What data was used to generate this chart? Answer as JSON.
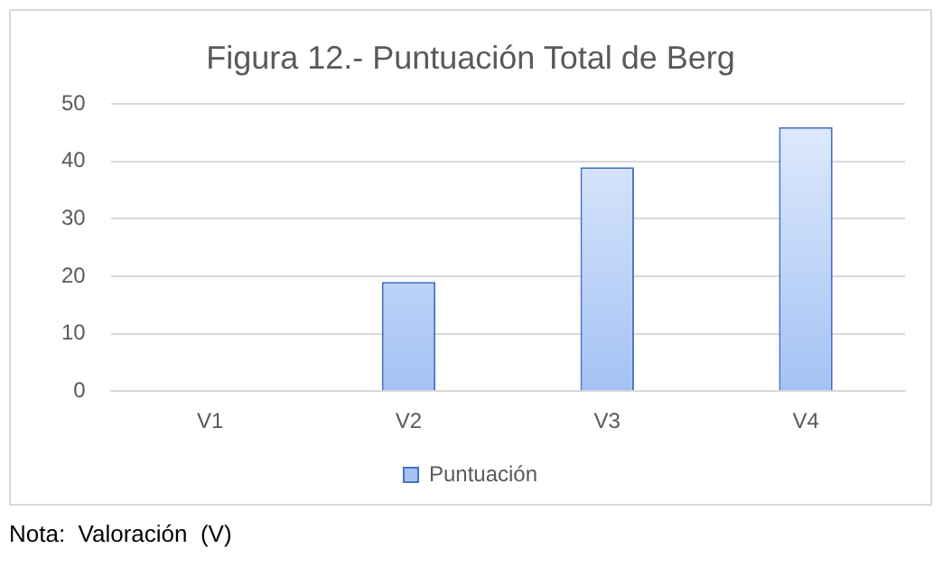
{
  "chart_data": {
    "type": "bar",
    "title": "Figura 12.- Puntuación Total de Berg",
    "categories": [
      "V1",
      "V2",
      "V3",
      "V4"
    ],
    "series": [
      {
        "name": "Puntuación",
        "color": "#a4c2f4",
        "values": [
          0,
          19,
          39,
          46
        ]
      }
    ],
    "ylim": [
      0,
      50
    ],
    "yticks": [
      0,
      10,
      20,
      30,
      40,
      50
    ],
    "grid": "y",
    "legend": "bottom",
    "annotations": [
      "Nota:  Valoración  (V)"
    ]
  }
}
